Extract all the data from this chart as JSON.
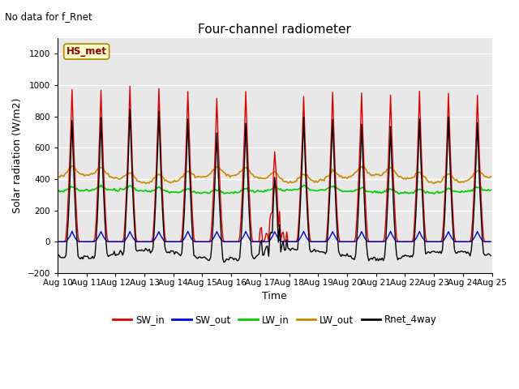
{
  "title": "Four-channel radiometer",
  "subtitle": "No data for f_Rnet",
  "xlabel": "Time",
  "ylabel": "Solar radiation (W/m2)",
  "ylim": [
    -200,
    1300
  ],
  "yticks": [
    -200,
    0,
    200,
    400,
    600,
    800,
    1000,
    1200
  ],
  "x_tick_labels": [
    "Aug 10",
    "Aug 11",
    "Aug 12",
    "Aug 13",
    "Aug 14",
    "Aug 15",
    "Aug 16",
    "Aug 17",
    "Aug 18",
    "Aug 19",
    "Aug 20",
    "Aug 21",
    "Aug 22",
    "Aug 23",
    "Aug 24",
    "Aug 25"
  ],
  "station_label": "HS_met",
  "colors": {
    "SW_in": "#dd0000",
    "SW_out": "#0000dd",
    "LW_in": "#00cc00",
    "LW_out": "#cc8800",
    "Rnet_4way": "#000000"
  },
  "legend_labels": [
    "SW_in",
    "SW_out",
    "LW_in",
    "LW_out",
    "Rnet_4way"
  ],
  "fig_bg": "#ffffff",
  "plot_bg": "#e8e8e8"
}
